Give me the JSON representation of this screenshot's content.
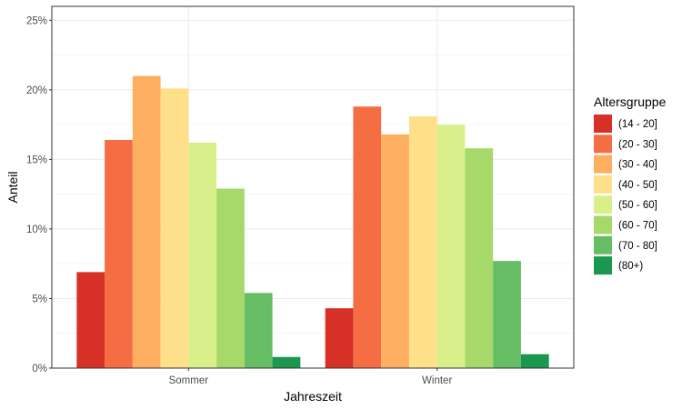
{
  "chart_data": {
    "type": "bar",
    "xlabel": "Jahreszeit",
    "ylabel": "Anteil",
    "categories": [
      "Sommer",
      "Winter"
    ],
    "ylim": [
      0,
      26
    ],
    "yticks": [
      0,
      5,
      10,
      15,
      20,
      25
    ],
    "ytick_labels": [
      "0%",
      "5%",
      "10%",
      "15%",
      "20%",
      "25%"
    ],
    "grid": true,
    "legend": {
      "title": "Altersgruppe",
      "position": "right"
    },
    "series": [
      {
        "name": "(14 - 20]",
        "color": "#d73027",
        "values": [
          6.9,
          4.3
        ]
      },
      {
        "name": "(20 - 30]",
        "color": "#f46d43",
        "values": [
          16.4,
          18.8
        ]
      },
      {
        "name": "(30 - 40]",
        "color": "#fdae61",
        "values": [
          21.0,
          16.8
        ]
      },
      {
        "name": "(40 - 50]",
        "color": "#fee08b",
        "values": [
          20.1,
          18.1
        ]
      },
      {
        "name": "(50 - 60]",
        "color": "#d9ef8b",
        "values": [
          16.2,
          17.5
        ]
      },
      {
        "name": "(60 - 70]",
        "color": "#a6d96a",
        "values": [
          12.9,
          15.8
        ]
      },
      {
        "name": "(70 - 80]",
        "color": "#66bd63",
        "values": [
          5.4,
          7.7
        ]
      },
      {
        "name": "(80+)",
        "color": "#1a9850",
        "values": [
          0.8,
          1.0
        ]
      }
    ]
  }
}
